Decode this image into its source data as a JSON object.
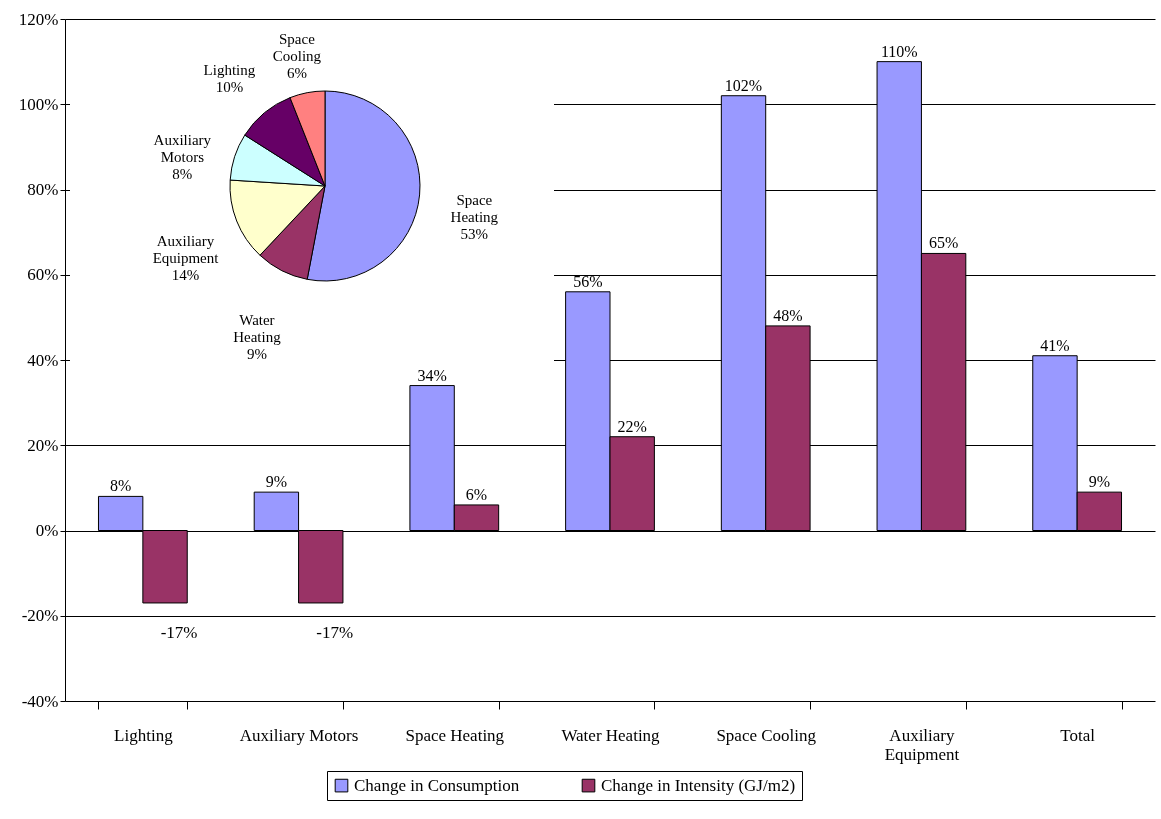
{
  "chart_data": [
    {
      "type": "bar",
      "categories": [
        "Lighting",
        "Auxiliary Motors",
        "Space Heating",
        "Water Heating",
        "Space Cooling",
        "Auxiliary Equipment",
        "Total"
      ],
      "series": [
        {
          "name": "Change in Consumption",
          "color": "#9999ff",
          "values": [
            8,
            9,
            34,
            56,
            102,
            110,
            41
          ],
          "value_labels": [
            "8%",
            "9%",
            "34%",
            "56%",
            "102%",
            "110%",
            "41%"
          ]
        },
        {
          "name": "Change in Intensity (GJ/m2)",
          "color": "#993366",
          "values": [
            -17,
            -17,
            6,
            22,
            48,
            65,
            9
          ],
          "value_labels": [
            "-17%",
            "-17%",
            "6%",
            "22%",
            "48%",
            "65%",
            "9%"
          ]
        }
      ],
      "ylim": [
        -40,
        120
      ],
      "yticks": [
        {
          "value": -40,
          "label": "-40%"
        },
        {
          "value": -20,
          "label": "-20%"
        },
        {
          "value": 0,
          "label": "0%"
        },
        {
          "value": 20,
          "label": "20%"
        },
        {
          "value": 40,
          "label": "40%"
        },
        {
          "value": 60,
          "label": "60%"
        },
        {
          "value": 80,
          "label": "80%"
        },
        {
          "value": 100,
          "label": "100%"
        },
        {
          "value": 120,
          "label": "120%"
        }
      ],
      "grid": "y",
      "legend": "bottom"
    },
    {
      "type": "pie",
      "categories": [
        "Space Heating",
        "Water Heating",
        "Auxiliary Equipment",
        "Auxiliary Motors",
        "Lighting",
        "Space Cooling"
      ],
      "values": [
        53,
        9,
        14,
        8,
        10,
        6
      ],
      "colors": [
        "#9999ff",
        "#993366",
        "#ffffcc",
        "#ccffff",
        "#660066",
        "#ff8080"
      ],
      "value_labels": [
        "53%",
        "9%",
        "14%",
        "8%",
        "10%",
        "6%"
      ]
    }
  ]
}
